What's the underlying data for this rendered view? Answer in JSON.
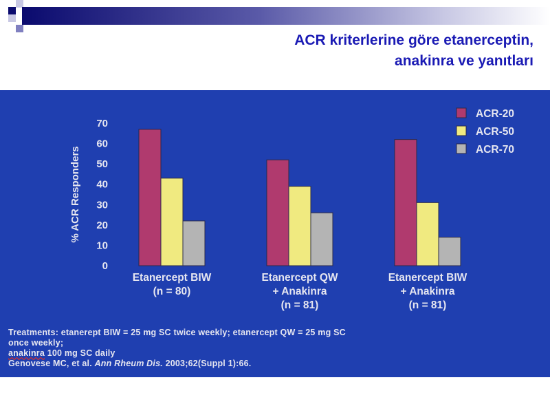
{
  "slide": {
    "title_line1": "ACR kriterlerine göre etanerceptin,",
    "title_line2": "anakinra ve yanıtları"
  },
  "footnote": {
    "line1": "Treatments: etanerept BIW = 25 mg SC twice weekly; etanercept QW = 25 mg SC",
    "line2": "once weekly;",
    "line3_a": "anakinra",
    "line3_b": " 100 mg SC daily",
    "line4_a": "Genovese MC, et al. ",
    "line4_b": "Ann Rheum Dis.",
    "line4_c": " 2003;62(Suppl 1):66."
  },
  "colors": {
    "panel_bg": "#1f3fb0",
    "title": "#1a1ab4",
    "text": "#e6e6f0"
  },
  "chart_data": {
    "type": "bar",
    "ylabel": "% ACR Responders",
    "ylim": [
      0,
      70
    ],
    "yticks": [
      0,
      10,
      20,
      30,
      40,
      50,
      60,
      70
    ],
    "grid": false,
    "legend_position": "top-right",
    "categories": [
      [
        "Etanercept BIW",
        "(n = 80)"
      ],
      [
        "Etanercept QW",
        "+ Anakinra",
        "(n = 81)"
      ],
      [
        "Etanercept BIW",
        "+ Anakinra",
        "(n = 81)"
      ]
    ],
    "series": [
      {
        "name": "ACR-20",
        "color": "#b03a6e",
        "values": [
          67,
          52,
          62
        ]
      },
      {
        "name": "ACR-50",
        "color": "#f0ea80",
        "values": [
          43,
          39,
          31
        ]
      },
      {
        "name": "ACR-70",
        "color": "#b4b4b4",
        "values": [
          22,
          26,
          14
        ]
      }
    ]
  }
}
